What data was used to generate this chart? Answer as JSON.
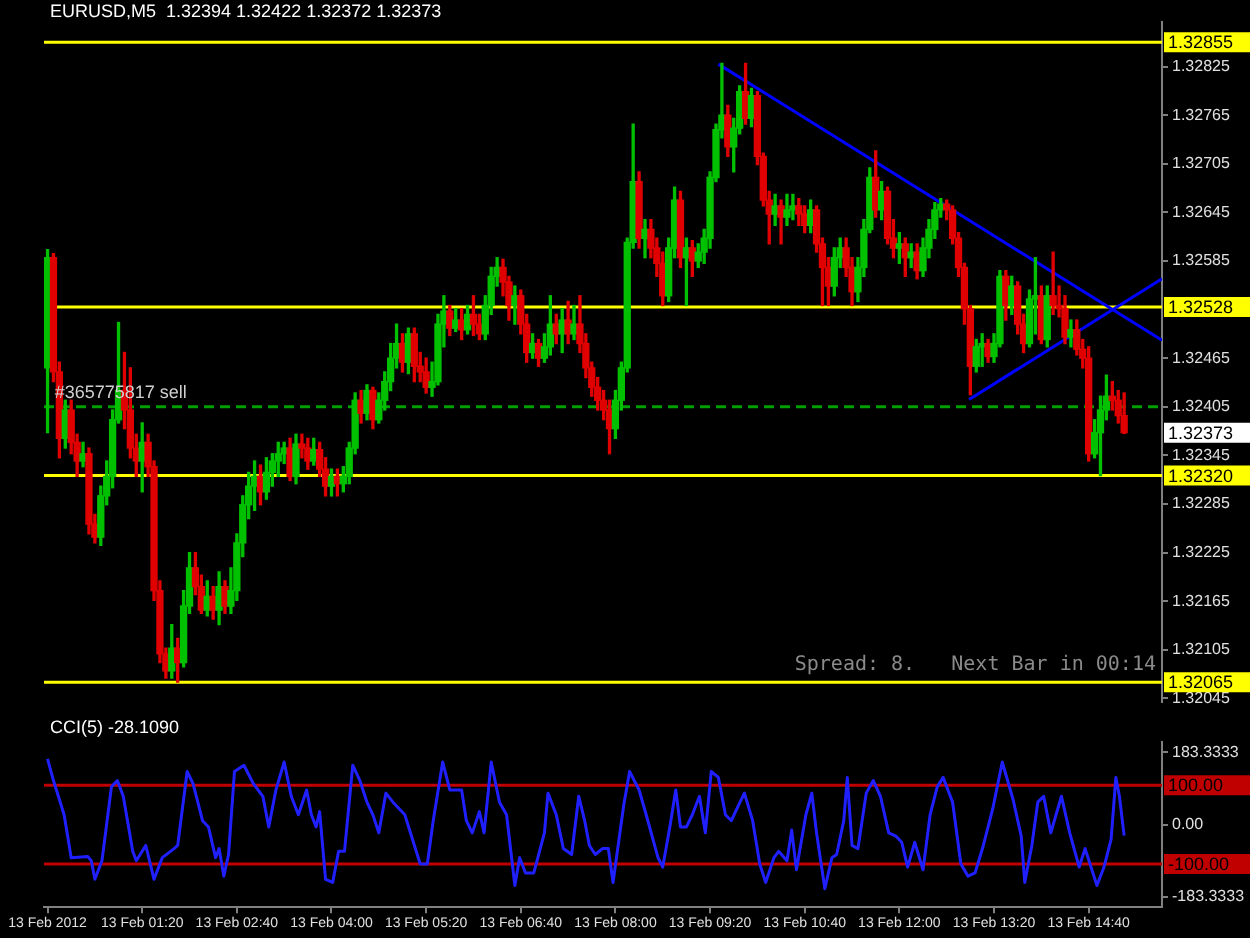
{
  "chart_data": [
    {
      "type": "candlestick",
      "title": "EURUSD,M5  1.32394 1.32422 1.32372 1.32373",
      "x": [
        "2012-02-13T00:00",
        "2012-02-13T00:05",
        "2012-02-13T00:10",
        "2012-02-13T00:15",
        "2012-02-13T00:20",
        "2012-02-13T00:25",
        "2012-02-13T00:30",
        "2012-02-13T00:35",
        "2012-02-13T00:40",
        "2012-02-13T00:45",
        "2012-02-13T00:50",
        "2012-02-13T00:55",
        "2012-02-13T01:00",
        "2012-02-13T01:05",
        "2012-02-13T01:10",
        "2012-02-13T01:15",
        "2012-02-13T01:20",
        "2012-02-13T01:25",
        "2012-02-13T01:30",
        "2012-02-13T01:35",
        "2012-02-13T01:40",
        "2012-02-13T01:45",
        "2012-02-13T01:50",
        "2012-02-13T01:55",
        "2012-02-13T02:00",
        "2012-02-13T02:05",
        "2012-02-13T02:10",
        "2012-02-13T02:15",
        "2012-02-13T02:20",
        "2012-02-13T02:25",
        "2012-02-13T02:30",
        "2012-02-13T02:35",
        "2012-02-13T02:40",
        "2012-02-13T02:45",
        "2012-02-13T02:50",
        "2012-02-13T02:55",
        "2012-02-13T03:00",
        "2012-02-13T03:05",
        "2012-02-13T03:10",
        "2012-02-13T03:15",
        "2012-02-13T03:20",
        "2012-02-13T03:25",
        "2012-02-13T03:30",
        "2012-02-13T03:35",
        "2012-02-13T03:40",
        "2012-02-13T03:45",
        "2012-02-13T03:50",
        "2012-02-13T03:55",
        "2012-02-13T04:00",
        "2012-02-13T04:05",
        "2012-02-13T04:10",
        "2012-02-13T04:15",
        "2012-02-13T04:20",
        "2012-02-13T04:25",
        "2012-02-13T04:30",
        "2012-02-13T04:35",
        "2012-02-13T04:40",
        "2012-02-13T04:45",
        "2012-02-13T04:50",
        "2012-02-13T04:55",
        "2012-02-13T05:00",
        "2012-02-13T05:05",
        "2012-02-13T05:10",
        "2012-02-13T05:15",
        "2012-02-13T05:20",
        "2012-02-13T05:25",
        "2012-02-13T05:30",
        "2012-02-13T05:35",
        "2012-02-13T05:40",
        "2012-02-13T05:45",
        "2012-02-13T05:50",
        "2012-02-13T05:55",
        "2012-02-13T06:00",
        "2012-02-13T06:05",
        "2012-02-13T06:10",
        "2012-02-13T06:15",
        "2012-02-13T06:20",
        "2012-02-13T06:25",
        "2012-02-13T06:30",
        "2012-02-13T06:35",
        "2012-02-13T06:40",
        "2012-02-13T06:45",
        "2012-02-13T06:50",
        "2012-02-13T06:55",
        "2012-02-13T07:00",
        "2012-02-13T07:05",
        "2012-02-13T07:10",
        "2012-02-13T07:15",
        "2012-02-13T07:20",
        "2012-02-13T07:25",
        "2012-02-13T07:30",
        "2012-02-13T07:35",
        "2012-02-13T07:40",
        "2012-02-13T07:45",
        "2012-02-13T07:50",
        "2012-02-13T07:55",
        "2012-02-13T08:00",
        "2012-02-13T08:05",
        "2012-02-13T08:10",
        "2012-02-13T08:15",
        "2012-02-13T08:20",
        "2012-02-13T08:25",
        "2012-02-13T08:30",
        "2012-02-13T08:35",
        "2012-02-13T08:40",
        "2012-02-13T08:45",
        "2012-02-13T08:50",
        "2012-02-13T08:55",
        "2012-02-13T09:00",
        "2012-02-13T09:05",
        "2012-02-13T09:10",
        "2012-02-13T09:15",
        "2012-02-13T09:20",
        "2012-02-13T09:25",
        "2012-02-13T09:30",
        "2012-02-13T09:35",
        "2012-02-13T09:40",
        "2012-02-13T09:45",
        "2012-02-13T09:50",
        "2012-02-13T09:55",
        "2012-02-13T10:00",
        "2012-02-13T10:05",
        "2012-02-13T10:10",
        "2012-02-13T10:15",
        "2012-02-13T10:20",
        "2012-02-13T10:25",
        "2012-02-13T10:30",
        "2012-02-13T10:35",
        "2012-02-13T10:40",
        "2012-02-13T10:45",
        "2012-02-13T10:50",
        "2012-02-13T10:55",
        "2012-02-13T11:00",
        "2012-02-13T11:05",
        "2012-02-13T11:10",
        "2012-02-13T11:15",
        "2012-02-13T11:20",
        "2012-02-13T11:25",
        "2012-02-13T11:30",
        "2012-02-13T11:35",
        "2012-02-13T11:40",
        "2012-02-13T11:45",
        "2012-02-13T11:50",
        "2012-02-13T11:55",
        "2012-02-13T12:00",
        "2012-02-13T12:05",
        "2012-02-13T12:10",
        "2012-02-13T12:15",
        "2012-02-13T12:20",
        "2012-02-13T12:25",
        "2012-02-13T12:30",
        "2012-02-13T12:35",
        "2012-02-13T12:40",
        "2012-02-13T12:45",
        "2012-02-13T12:50",
        "2012-02-13T12:55",
        "2012-02-13T13:00",
        "2012-02-13T13:05",
        "2012-02-13T13:10",
        "2012-02-13T13:15",
        "2012-02-13T13:20",
        "2012-02-13T13:25",
        "2012-02-13T13:30",
        "2012-02-13T13:35",
        "2012-02-13T13:40",
        "2012-02-13T13:45",
        "2012-02-13T13:50",
        "2012-02-13T13:55",
        "2012-02-13T14:00",
        "2012-02-13T14:05",
        "2012-02-13T14:10",
        "2012-02-13T14:15",
        "2012-02-13T14:20",
        "2012-02-13T14:25",
        "2012-02-13T14:30",
        "2012-02-13T14:35",
        "2012-02-13T14:40",
        "2012-02-13T14:45",
        "2012-02-13T14:50",
        "2012-02-13T14:55",
        "2012-02-13T15:00",
        "2012-02-13T15:05",
        "2012-02-13T15:10"
      ],
      "ohlc": [
        [
          1.32453,
          1.32599,
          1.32373,
          1.32589
        ],
        [
          1.32589,
          1.32594,
          1.32436,
          1.32448
        ],
        [
          1.32448,
          1.3246,
          1.32342,
          1.32366
        ],
        [
          1.32366,
          1.32413,
          1.32354,
          1.32401
        ],
        [
          1.32401,
          1.32413,
          1.32347,
          1.32361
        ],
        [
          1.32361,
          1.32371,
          1.32319,
          1.32338
        ],
        [
          1.32338,
          1.32361,
          1.32331,
          1.32347
        ],
        [
          1.32347,
          1.32354,
          1.32248,
          1.3226
        ],
        [
          1.3226,
          1.32272,
          1.32237,
          1.32244
        ],
        [
          1.32244,
          1.32307,
          1.32234,
          1.32295
        ],
        [
          1.32295,
          1.32338,
          1.32284,
          1.32319
        ],
        [
          1.32319,
          1.32401,
          1.32305,
          1.32389
        ],
        [
          1.32389,
          1.32509,
          1.32385,
          1.32425
        ],
        [
          1.32425,
          1.32472,
          1.32378,
          1.32401
        ],
        [
          1.32401,
          1.32453,
          1.32342,
          1.32354
        ],
        [
          1.32354,
          1.32371,
          1.32319,
          1.32338
        ],
        [
          1.32338,
          1.32385,
          1.323,
          1.32361
        ],
        [
          1.32361,
          1.32371,
          1.32319,
          1.32331
        ],
        [
          1.32331,
          1.32338,
          1.32166,
          1.32178
        ],
        [
          1.32178,
          1.3219,
          1.32089,
          1.321
        ],
        [
          1.321,
          1.32107,
          1.3207,
          1.32079
        ],
        [
          1.32079,
          1.32136,
          1.3207,
          1.32107
        ],
        [
          1.32107,
          1.32119,
          1.32065,
          1.32089
        ],
        [
          1.32089,
          1.32178,
          1.32084,
          1.32159
        ],
        [
          1.32159,
          1.32225,
          1.3215,
          1.32206
        ],
        [
          1.32206,
          1.32225,
          1.32173,
          1.32183
        ],
        [
          1.32183,
          1.32197,
          1.3215,
          1.32154
        ],
        [
          1.32154,
          1.3219,
          1.32147,
          1.32171
        ],
        [
          1.32171,
          1.32183,
          1.32143,
          1.32154
        ],
        [
          1.32154,
          1.32201,
          1.32136,
          1.32183
        ],
        [
          1.32183,
          1.3219,
          1.3215,
          1.32159
        ],
        [
          1.32159,
          1.32206,
          1.3215,
          1.32178
        ],
        [
          1.32178,
          1.32248,
          1.32166,
          1.32237
        ],
        [
          1.32237,
          1.32295,
          1.3222,
          1.32284
        ],
        [
          1.32284,
          1.32324,
          1.32267,
          1.32307
        ],
        [
          1.32307,
          1.32338,
          1.32277,
          1.32319
        ],
        [
          1.32319,
          1.32333,
          1.32284,
          1.323
        ],
        [
          1.323,
          1.32342,
          1.32291,
          1.32324
        ],
        [
          1.32324,
          1.32347,
          1.32307,
          1.32338
        ],
        [
          1.32338,
          1.32361,
          1.32319,
          1.32347
        ],
        [
          1.32347,
          1.32361,
          1.32335,
          1.32354
        ],
        [
          1.32354,
          1.32366,
          1.32314,
          1.32319
        ],
        [
          1.32319,
          1.32371,
          1.3231,
          1.32359
        ],
        [
          1.32359,
          1.32371,
          1.32342,
          1.32354
        ],
        [
          1.32354,
          1.32366,
          1.32328,
          1.32338
        ],
        [
          1.32338,
          1.32366,
          1.32333,
          1.32352
        ],
        [
          1.32352,
          1.32361,
          1.32319,
          1.32328
        ],
        [
          1.32328,
          1.32342,
          1.32295,
          1.32307
        ],
        [
          1.32307,
          1.32328,
          1.32295,
          1.32319
        ],
        [
          1.32319,
          1.32328,
          1.32295,
          1.3231
        ],
        [
          1.3231,
          1.32331,
          1.323,
          1.32319
        ],
        [
          1.32319,
          1.32361,
          1.3231,
          1.32354
        ],
        [
          1.32354,
          1.32422,
          1.32347,
          1.32413
        ],
        [
          1.32413,
          1.32425,
          1.32385,
          1.32397
        ],
        [
          1.32397,
          1.32432,
          1.32389,
          1.32425
        ],
        [
          1.32425,
          1.32429,
          1.32378,
          1.32389
        ],
        [
          1.32389,
          1.32422,
          1.32385,
          1.32413
        ],
        [
          1.32413,
          1.32448,
          1.32401,
          1.32436
        ],
        [
          1.32436,
          1.32483,
          1.32425,
          1.32465
        ],
        [
          1.32465,
          1.32507,
          1.32453,
          1.32483
        ],
        [
          1.32483,
          1.32495,
          1.32448,
          1.3246
        ],
        [
          1.3246,
          1.32502,
          1.32446,
          1.32495
        ],
        [
          1.32495,
          1.32502,
          1.32436,
          1.32455
        ],
        [
          1.32455,
          1.32472,
          1.32436,
          1.32448
        ],
        [
          1.32448,
          1.32465,
          1.32422,
          1.32429
        ],
        [
          1.32429,
          1.3246,
          1.32418,
          1.32436
        ],
        [
          1.32436,
          1.32519,
          1.32432,
          1.32507
        ],
        [
          1.32507,
          1.32542,
          1.32479,
          1.32523
        ],
        [
          1.32523,
          1.3253,
          1.32493,
          1.32502
        ],
        [
          1.32502,
          1.32526,
          1.32498,
          1.32512
        ],
        [
          1.32512,
          1.32526,
          1.32488,
          1.325
        ],
        [
          1.325,
          1.3253,
          1.32495,
          1.32519
        ],
        [
          1.32519,
          1.32542,
          1.32493,
          1.32507
        ],
        [
          1.32507,
          1.32519,
          1.32488,
          1.32495
        ],
        [
          1.32495,
          1.32542,
          1.32488,
          1.3253
        ],
        [
          1.3253,
          1.32577,
          1.32519,
          1.32566
        ],
        [
          1.32566,
          1.32589,
          1.32554,
          1.32577
        ],
        [
          1.32577,
          1.32587,
          1.32542,
          1.32559
        ],
        [
          1.32559,
          1.32566,
          1.32512,
          1.3253
        ],
        [
          1.3253,
          1.32554,
          1.32507,
          1.32542
        ],
        [
          1.32542,
          1.32549,
          1.32495,
          1.32507
        ],
        [
          1.32507,
          1.32519,
          1.3246,
          1.32472
        ],
        [
          1.32472,
          1.32495,
          1.32465,
          1.32483
        ],
        [
          1.32483,
          1.32488,
          1.32455,
          1.32465
        ],
        [
          1.32465,
          1.32495,
          1.3246,
          1.32479
        ],
        [
          1.32479,
          1.32542,
          1.32469,
          1.32507
        ],
        [
          1.32507,
          1.32519,
          1.32483,
          1.32495
        ],
        [
          1.32495,
          1.32526,
          1.32472,
          1.32512
        ],
        [
          1.32512,
          1.32535,
          1.32483,
          1.32495
        ],
        [
          1.32495,
          1.3253,
          1.32488,
          1.32507
        ],
        [
          1.32507,
          1.32542,
          1.32472,
          1.32483
        ],
        [
          1.32483,
          1.32495,
          1.32441,
          1.32453
        ],
        [
          1.32453,
          1.3246,
          1.32418,
          1.32429
        ],
        [
          1.32429,
          1.32441,
          1.32401,
          1.32413
        ],
        [
          1.32413,
          1.32425,
          1.32389,
          1.32401
        ],
        [
          1.32401,
          1.32413,
          1.32347,
          1.32378
        ],
        [
          1.32378,
          1.32425,
          1.32366,
          1.32413
        ],
        [
          1.32413,
          1.3246,
          1.32401,
          1.32453
        ],
        [
          1.32453,
          1.32613,
          1.32448,
          1.32608
        ],
        [
          1.32608,
          1.32754,
          1.32601,
          1.32683
        ],
        [
          1.32683,
          1.32695,
          1.32601,
          1.32613
        ],
        [
          1.32613,
          1.32636,
          1.32589,
          1.32624
        ],
        [
          1.32624,
          1.32636,
          1.32589,
          1.32601
        ],
        [
          1.32601,
          1.32613,
          1.32566,
          1.32582
        ],
        [
          1.32582,
          1.32596,
          1.3253,
          1.32542
        ],
        [
          1.32542,
          1.32613,
          1.32535,
          1.32601
        ],
        [
          1.32601,
          1.32676,
          1.32589,
          1.3266
        ],
        [
          1.3266,
          1.32671,
          1.32577,
          1.32589
        ],
        [
          1.32589,
          1.32613,
          1.3253,
          1.32601
        ],
        [
          1.32601,
          1.3261,
          1.32566,
          1.32585
        ],
        [
          1.32585,
          1.32606,
          1.32577,
          1.32596
        ],
        [
          1.32596,
          1.32624,
          1.32582,
          1.32613
        ],
        [
          1.32613,
          1.32695,
          1.32601,
          1.32688
        ],
        [
          1.32688,
          1.32754,
          1.32683,
          1.32747
        ],
        [
          1.32747,
          1.32829,
          1.32737,
          1.32765
        ],
        [
          1.32765,
          1.32777,
          1.32714,
          1.32726
        ],
        [
          1.32726,
          1.32761,
          1.32695,
          1.32749
        ],
        [
          1.32749,
          1.32801,
          1.32742,
          1.32794
        ],
        [
          1.32794,
          1.32829,
          1.32754,
          1.32761
        ],
        [
          1.32761,
          1.32798,
          1.32751,
          1.32789
        ],
        [
          1.32789,
          1.32794,
          1.32704,
          1.32714
        ],
        [
          1.32714,
          1.32718,
          1.32653,
          1.3266
        ],
        [
          1.3266,
          1.32671,
          1.32606,
          1.32643
        ],
        [
          1.32643,
          1.32667,
          1.32629,
          1.32653
        ],
        [
          1.32653,
          1.3266,
          1.32606,
          1.32639
        ],
        [
          1.32639,
          1.32667,
          1.32629,
          1.32648
        ],
        [
          1.32648,
          1.32667,
          1.32636,
          1.32653
        ],
        [
          1.32653,
          1.32662,
          1.32629,
          1.32643
        ],
        [
          1.32643,
          1.32653,
          1.3262,
          1.32629
        ],
        [
          1.32629,
          1.3266,
          1.3262,
          1.32648
        ],
        [
          1.32648,
          1.32653,
          1.32596,
          1.32606
        ],
        [
          1.32606,
          1.32613,
          1.3253,
          1.32577
        ],
        [
          1.32577,
          1.32589,
          1.3253,
          1.32554
        ],
        [
          1.32554,
          1.32601,
          1.32542,
          1.32589
        ],
        [
          1.32589,
          1.32613,
          1.32577,
          1.32601
        ],
        [
          1.32601,
          1.32613,
          1.32566,
          1.32577
        ],
        [
          1.32577,
          1.32589,
          1.3253,
          1.32547
        ],
        [
          1.32547,
          1.32589,
          1.32535,
          1.32577
        ],
        [
          1.32577,
          1.32636,
          1.32566,
          1.32624
        ],
        [
          1.32624,
          1.327,
          1.3262,
          1.32688
        ],
        [
          1.32688,
          1.32721,
          1.32639,
          1.32648
        ],
        [
          1.32648,
          1.32683,
          1.32636,
          1.32671
        ],
        [
          1.32671,
          1.32676,
          1.32606,
          1.32613
        ],
        [
          1.32613,
          1.32636,
          1.32589,
          1.32601
        ],
        [
          1.32601,
          1.3262,
          1.32582,
          1.32606
        ],
        [
          1.32606,
          1.32613,
          1.32566,
          1.32589
        ],
        [
          1.32589,
          1.32606,
          1.32577,
          1.32596
        ],
        [
          1.32596,
          1.32606,
          1.32563,
          1.32573
        ],
        [
          1.32573,
          1.32613,
          1.32566,
          1.32601
        ],
        [
          1.32601,
          1.32636,
          1.32589,
          1.32624
        ],
        [
          1.32624,
          1.32657,
          1.32613,
          1.32648
        ],
        [
          1.32648,
          1.32662,
          1.32639,
          1.32655
        ],
        [
          1.32655,
          1.3266,
          1.32636,
          1.32648
        ],
        [
          1.32648,
          1.32653,
          1.32606,
          1.32613
        ],
        [
          1.32613,
          1.3262,
          1.32566,
          1.32577
        ],
        [
          1.32577,
          1.32582,
          1.32507,
          1.32526
        ],
        [
          1.32526,
          1.3253,
          1.3242,
          1.32455
        ],
        [
          1.32455,
          1.32488,
          1.32448,
          1.32479
        ],
        [
          1.32479,
          1.32495,
          1.32455,
          1.32483
        ],
        [
          1.32483,
          1.32488,
          1.3246,
          1.32467
        ],
        [
          1.32467,
          1.32495,
          1.3246,
          1.32483
        ],
        [
          1.32483,
          1.32573,
          1.32479,
          1.32566
        ],
        [
          1.32566,
          1.32573,
          1.32512,
          1.3253
        ],
        [
          1.3253,
          1.32566,
          1.32519,
          1.32554
        ],
        [
          1.32554,
          1.32559,
          1.32495,
          1.32507
        ],
        [
          1.32507,
          1.32519,
          1.32472,
          1.32483
        ],
        [
          1.32483,
          1.32549,
          1.32479,
          1.32538
        ],
        [
          1.32538,
          1.32589,
          1.32495,
          1.32542
        ],
        [
          1.32542,
          1.32554,
          1.32483,
          1.32488
        ],
        [
          1.32488,
          1.32554,
          1.32479,
          1.32542
        ],
        [
          1.32542,
          1.32596,
          1.32519,
          1.3253
        ],
        [
          1.3253,
          1.32554,
          1.32516,
          1.32526
        ],
        [
          1.32526,
          1.32542,
          1.32483,
          1.32491
        ],
        [
          1.32491,
          1.32512,
          1.32479,
          1.325
        ],
        [
          1.325,
          1.32512,
          1.32469,
          1.32476
        ],
        [
          1.32476,
          1.32488,
          1.32453,
          1.32465
        ],
        [
          1.32465,
          1.32479,
          1.32338,
          1.32347
        ],
        [
          1.32347,
          1.32389,
          1.32342,
          1.32373
        ],
        [
          1.32373,
          1.32418,
          1.3232,
          1.32401
        ],
        [
          1.32401,
          1.32444,
          1.32389,
          1.32418
        ],
        [
          1.32418,
          1.32436,
          1.32401,
          1.32413
        ],
        [
          1.32413,
          1.32425,
          1.32385,
          1.32394
        ],
        [
          1.32394,
          1.32422,
          1.32372,
          1.32373
        ]
      ],
      "colors": [
        "#00c000",
        "#e00000",
        "#e00000",
        "#00c000",
        "#e00000",
        "#e00000",
        "#00c000",
        "#e00000",
        "#e00000",
        "#00c000",
        "#00c000",
        "#00c000",
        "#00c000",
        "#e00000",
        "#e00000",
        "#e00000",
        "#00c000",
        "#e00000",
        "#e00000",
        "#e00000",
        "#e00000",
        "#00c000",
        "#e00000",
        "#00c000",
        "#00c000",
        "#e00000",
        "#e00000",
        "#00c000",
        "#e00000",
        "#00c000",
        "#e00000",
        "#00c000",
        "#00c000",
        "#00c000",
        "#00c000",
        "#00c000",
        "#e00000",
        "#00c000",
        "#00c000",
        "#00c000",
        "#00c000",
        "#e00000",
        "#00c000",
        "#e00000",
        "#e00000",
        "#00c000",
        "#e00000",
        "#e00000",
        "#00c000",
        "#e00000",
        "#00c000",
        "#00c000",
        "#00c000",
        "#e00000",
        "#00c000",
        "#e00000",
        "#00c000",
        "#00c000",
        "#00c000",
        "#00c000",
        "#e00000",
        "#00c000",
        "#e00000",
        "#e00000",
        "#e00000",
        "#00c000",
        "#00c000",
        "#00c000",
        "#e00000",
        "#00c000",
        "#e00000",
        "#00c000",
        "#e00000",
        "#e00000",
        "#00c000",
        "#00c000",
        "#00c000",
        "#e00000",
        "#e00000",
        "#00c000",
        "#e00000",
        "#e00000",
        "#00c000",
        "#e00000",
        "#00c000",
        "#00c000",
        "#e00000",
        "#00c000",
        "#e00000",
        "#00c000",
        "#e00000",
        "#e00000",
        "#e00000",
        "#e00000",
        "#e00000",
        "#e00000",
        "#00c000",
        "#00c000",
        "#00c000",
        "#00c000",
        "#e00000",
        "#00c000",
        "#e00000",
        "#e00000",
        "#e00000",
        "#00c000",
        "#00c000",
        "#e00000",
        "#00c000",
        "#e00000",
        "#00c000",
        "#00c000",
        "#00c000",
        "#00c000",
        "#00c000",
        "#e00000",
        "#00c000",
        "#00c000",
        "#e00000",
        "#00c000",
        "#e00000",
        "#e00000",
        "#e00000",
        "#00c000",
        "#e00000",
        "#00c000",
        "#00c000",
        "#e00000",
        "#e00000",
        "#00c000",
        "#e00000",
        "#e00000",
        "#e00000",
        "#00c000",
        "#00c000",
        "#e00000",
        "#e00000",
        "#00c000",
        "#00c000",
        "#00c000",
        "#e00000",
        "#00c000",
        "#e00000",
        "#e00000",
        "#00c000",
        "#e00000",
        "#00c000",
        "#e00000",
        "#00c000",
        "#00c000",
        "#00c000",
        "#00c000",
        "#e00000",
        "#e00000",
        "#e00000",
        "#e00000",
        "#e00000",
        "#00c000",
        "#00c000",
        "#e00000",
        "#00c000",
        "#00c000",
        "#e00000",
        "#00c000",
        "#e00000",
        "#e00000",
        "#00c000",
        "#00c000",
        "#e00000",
        "#00c000",
        "#e00000",
        "#e00000",
        "#e00000",
        "#00c000",
        "#e00000",
        "#e00000",
        "#e00000",
        "#00c000",
        "#00c000",
        "#00c000",
        "#e00000",
        "#e00000",
        "#e00000"
      ],
      "series": [
        {
          "type": "line",
          "color": "#0000ff",
          "x": [
            "2012-02-13T09:27",
            "2012-02-13T15:42"
          ],
          "values": [
            1.32828,
            1.32487
          ]
        },
        {
          "type": "line",
          "color": "#0000ff",
          "x": [
            "2012-02-13T12:59",
            "2012-02-13T15:42"
          ],
          "values": [
            1.32414,
            1.32563
          ]
        }
      ],
      "xlim": [
        "2012-02-12T23:57",
        "2012-02-13T15:42"
      ],
      "ylim": [
        1.3204,
        1.3288
      ],
      "yticks": [
        1.32045,
        1.32105,
        1.32165,
        1.32225,
        1.32285,
        1.32345,
        1.32405,
        1.32465,
        1.32585,
        1.32645,
        1.32705,
        1.32765,
        1.32825
      ],
      "tick_labels": "y",
      "ref_lines": [
        {
          "axis": "y",
          "value": 1.32855,
          "label": "1.32855",
          "color": "#ffff00"
        },
        {
          "axis": "y",
          "value": 1.32528,
          "label": "1.32528",
          "color": "#ffff00"
        },
        {
          "axis": "y",
          "value": 1.3232,
          "label": "1.32320",
          "color": "#ffff00"
        },
        {
          "axis": "y",
          "value": 1.32065,
          "label": "1.32065",
          "color": "#ffff00"
        },
        {
          "axis": "y",
          "value": 1.32405,
          "color": "#00a000",
          "line_style": "dashed"
        }
      ],
      "annotations": [
        {
          "text": "#365775817 sell",
          "x": "2012-02-13T00:06",
          "y": 1.32405
        },
        "1.32373",
        "Spread: 8.   Next Bar in 00:14"
      ]
    },
    {
      "type": "line",
      "title": "CCI(5) -28.1090",
      "color": "#2020ff",
      "x": [
        "2012-02-13T00:00",
        "2012-02-13T00:05",
        "2012-02-13T00:14",
        "2012-02-13T00:20",
        "2012-02-13T00:34",
        "2012-02-13T00:37",
        "2012-02-13T00:40",
        "2012-02-13T00:46",
        "2012-02-13T00:54",
        "2012-02-13T00:59",
        "2012-02-13T01:04",
        "2012-02-13T01:12",
        "2012-02-13T01:15",
        "2012-02-13T01:23",
        "2012-02-13T01:30",
        "2012-02-13T01:37",
        "2012-02-13T01:47",
        "2012-02-13T01:50",
        "2012-02-13T01:58",
        "2012-02-13T02:03",
        "2012-02-13T02:11",
        "2012-02-13T02:16",
        "2012-02-13T02:22",
        "2012-02-13T02:25",
        "2012-02-13T02:29",
        "2012-02-13T02:33",
        "2012-02-13T02:38",
        "2012-02-13T02:46",
        "2012-02-13T02:54",
        "2012-02-13T03:02",
        "2012-02-13T03:07",
        "2012-02-13T03:13",
        "2012-02-13T03:20",
        "2012-02-13T03:26",
        "2012-02-13T03:32",
        "2012-02-13T03:39",
        "2012-02-13T03:43",
        "2012-02-13T03:47",
        "2012-02-13T03:50",
        "2012-02-13T03:52",
        "2012-02-13T03:55",
        "2012-02-13T04:01",
        "2012-02-13T04:06",
        "2012-02-13T04:11",
        "2012-02-13T04:18",
        "2012-02-13T04:24",
        "2012-02-13T04:30",
        "2012-02-13T04:35",
        "2012-02-13T04:40",
        "2012-02-13T04:46",
        "2012-02-13T04:52",
        "2012-02-13T05:02",
        "2012-02-13T05:15",
        "2012-02-13T05:21",
        "2012-02-13T05:26",
        "2012-02-13T05:34",
        "2012-02-13T05:40",
        "2012-02-13T05:50",
        "2012-02-13T05:54",
        "2012-02-13T05:59",
        "2012-02-13T06:05",
        "2012-02-13T06:09",
        "2012-02-13T06:15",
        "2012-02-13T06:22",
        "2012-02-13T06:28",
        "2012-02-13T06:35",
        "2012-02-13T06:39",
        "2012-02-13T06:44",
        "2012-02-13T06:51",
        "2012-02-13T07:00",
        "2012-02-13T07:03",
        "2012-02-13T07:10",
        "2012-02-13T07:16",
        "2012-02-13T07:23",
        "2012-02-13T07:29",
        "2012-02-13T07:34",
        "2012-02-13T07:38",
        "2012-02-13T07:43",
        "2012-02-13T07:49",
        "2012-02-13T07:54",
        "2012-02-13T07:58",
        "2012-02-13T08:07",
        "2012-02-13T08:12",
        "2012-02-13T08:20",
        "2012-02-13T08:26",
        "2012-02-13T08:36",
        "2012-02-13T08:40",
        "2012-02-13T08:46",
        "2012-02-13T08:51",
        "2012-02-13T08:55",
        "2012-02-13T09:00",
        "2012-02-13T09:05",
        "2012-02-13T09:11",
        "2012-02-13T09:16",
        "2012-02-13T09:21",
        "2012-02-13T09:27",
        "2012-02-13T09:33",
        "2012-02-13T09:38",
        "2012-02-13T09:44",
        "2012-02-13T09:49",
        "2012-02-13T09:56",
        "2012-02-13T10:02",
        "2012-02-13T10:07",
        "2012-02-13T10:14",
        "2012-02-13T10:18",
        "2012-02-13T10:25",
        "2012-02-13T10:29",
        "2012-02-13T10:33",
        "2012-02-13T10:41",
        "2012-02-13T10:46",
        "2012-02-13T10:50",
        "2012-02-13T10:57",
        "2012-02-13T11:03",
        "2012-02-13T11:07",
        "2012-02-13T11:13",
        "2012-02-13T11:16",
        "2012-02-13T11:20",
        "2012-02-13T11:25",
        "2012-02-13T11:32",
        "2012-02-13T11:38",
        "2012-02-13T11:44",
        "2012-02-13T11:51",
        "2012-02-13T11:57",
        "2012-02-13T12:02",
        "2012-02-13T12:07",
        "2012-02-13T12:13",
        "2012-02-13T12:20",
        "2012-02-13T12:26",
        "2012-02-13T12:32",
        "2012-02-13T12:37",
        "2012-02-13T12:45",
        "2012-02-13T12:52",
        "2012-02-13T12:58",
        "2012-02-13T13:04",
        "2012-02-13T13:11",
        "2012-02-13T13:19",
        "2012-02-13T13:27",
        "2012-02-13T13:36",
        "2012-02-13T13:43",
        "2012-02-13T13:46",
        "2012-02-13T13:52",
        "2012-02-13T13:57",
        "2012-02-13T14:02",
        "2012-02-13T14:08",
        "2012-02-13T14:17",
        "2012-02-13T14:24",
        "2012-02-13T14:32",
        "2012-02-13T14:37",
        "2012-02-13T14:47",
        "2012-02-13T14:53",
        "2012-02-13T14:59",
        "2012-02-13T15:03",
        "2012-02-13T15:06",
        "2012-02-13T15:10"
      ],
      "values": [
        167,
        112,
        25,
        -84,
        -81,
        -92,
        -139,
        -92,
        96,
        112,
        72,
        -68,
        -92,
        -53,
        -139,
        -84,
        -61,
        -53,
        135,
        104,
        10,
        -6,
        -84,
        -61,
        -131,
        -76,
        135,
        151,
        104,
        72,
        -6,
        88,
        159,
        72,
        25,
        88,
        25,
        -6,
        33,
        -37,
        -139,
        -147,
        -68,
        -68,
        151,
        112,
        57,
        25,
        -21,
        80,
        57,
        25,
        -100,
        -100,
        10,
        159,
        88,
        88,
        10,
        -21,
        33,
        -21,
        159,
        57,
        25,
        -155,
        -84,
        -123,
        -123,
        -21,
        80,
        25,
        -61,
        -76,
        72,
        10,
        -53,
        -76,
        -61,
        -61,
        -147,
        49,
        135,
        88,
        25,
        -84,
        -108,
        -6,
        88,
        -6,
        -6,
        25,
        72,
        -21,
        135,
        120,
        25,
        10,
        49,
        80,
        10,
        -100,
        -147,
        -84,
        -68,
        -92,
        -14,
        -115,
        25,
        80,
        -21,
        -163,
        -84,
        -76,
        10,
        120,
        -53,
        -61,
        80,
        112,
        72,
        -21,
        -29,
        -45,
        -108,
        -45,
        -115,
        25,
        96,
        120,
        57,
        -100,
        -131,
        -123,
        -53,
        41,
        159,
        65,
        -29,
        -147,
        -53,
        57,
        72,
        -21,
        72,
        -21,
        -108,
        -61,
        -155,
        -108,
        -37,
        120,
        72,
        -28
      ],
      "xlim": [
        "2012-02-12T23:57",
        "2012-02-13T15:42"
      ],
      "xticks": [
        {
          "value": "2012-02-13T00:00",
          "label": "13 Feb 2012"
        },
        {
          "value": "2012-02-13T01:20",
          "label": "13 Feb 01:20"
        },
        {
          "value": "2012-02-13T02:40",
          "label": "13 Feb 02:40"
        },
        {
          "value": "2012-02-13T04:00",
          "label": "13 Feb 04:00"
        },
        {
          "value": "2012-02-13T05:20",
          "label": "13 Feb 05:20"
        },
        {
          "value": "2012-02-13T06:40",
          "label": "13 Feb 06:40"
        },
        {
          "value": "2012-02-13T08:00",
          "label": "13 Feb 08:00"
        },
        {
          "value": "2012-02-13T09:20",
          "label": "13 Feb 09:20"
        },
        {
          "value": "2012-02-13T10:40",
          "label": "13 Feb 10:40"
        },
        {
          "value": "2012-02-13T12:00",
          "label": "13 Feb 12:00"
        },
        {
          "value": "2012-02-13T13:20",
          "label": "13 Feb 13:20"
        },
        {
          "value": "2012-02-13T14:40",
          "label": "13 Feb 14:40"
        }
      ],
      "ylim": [
        -210,
        210
      ],
      "yticks": [
        {
          "value": 183.3333,
          "label": "183.3333"
        },
        {
          "value": 0,
          "label": "0.00"
        },
        {
          "value": -183.3333,
          "label": "-183.3333"
        }
      ],
      "ref_lines": [
        {
          "axis": "y",
          "value": 100,
          "label": "100.00",
          "color": "#c00000"
        },
        {
          "axis": "y",
          "value": -100,
          "label": "-100.00",
          "color": "#c00000"
        }
      ]
    }
  ]
}
